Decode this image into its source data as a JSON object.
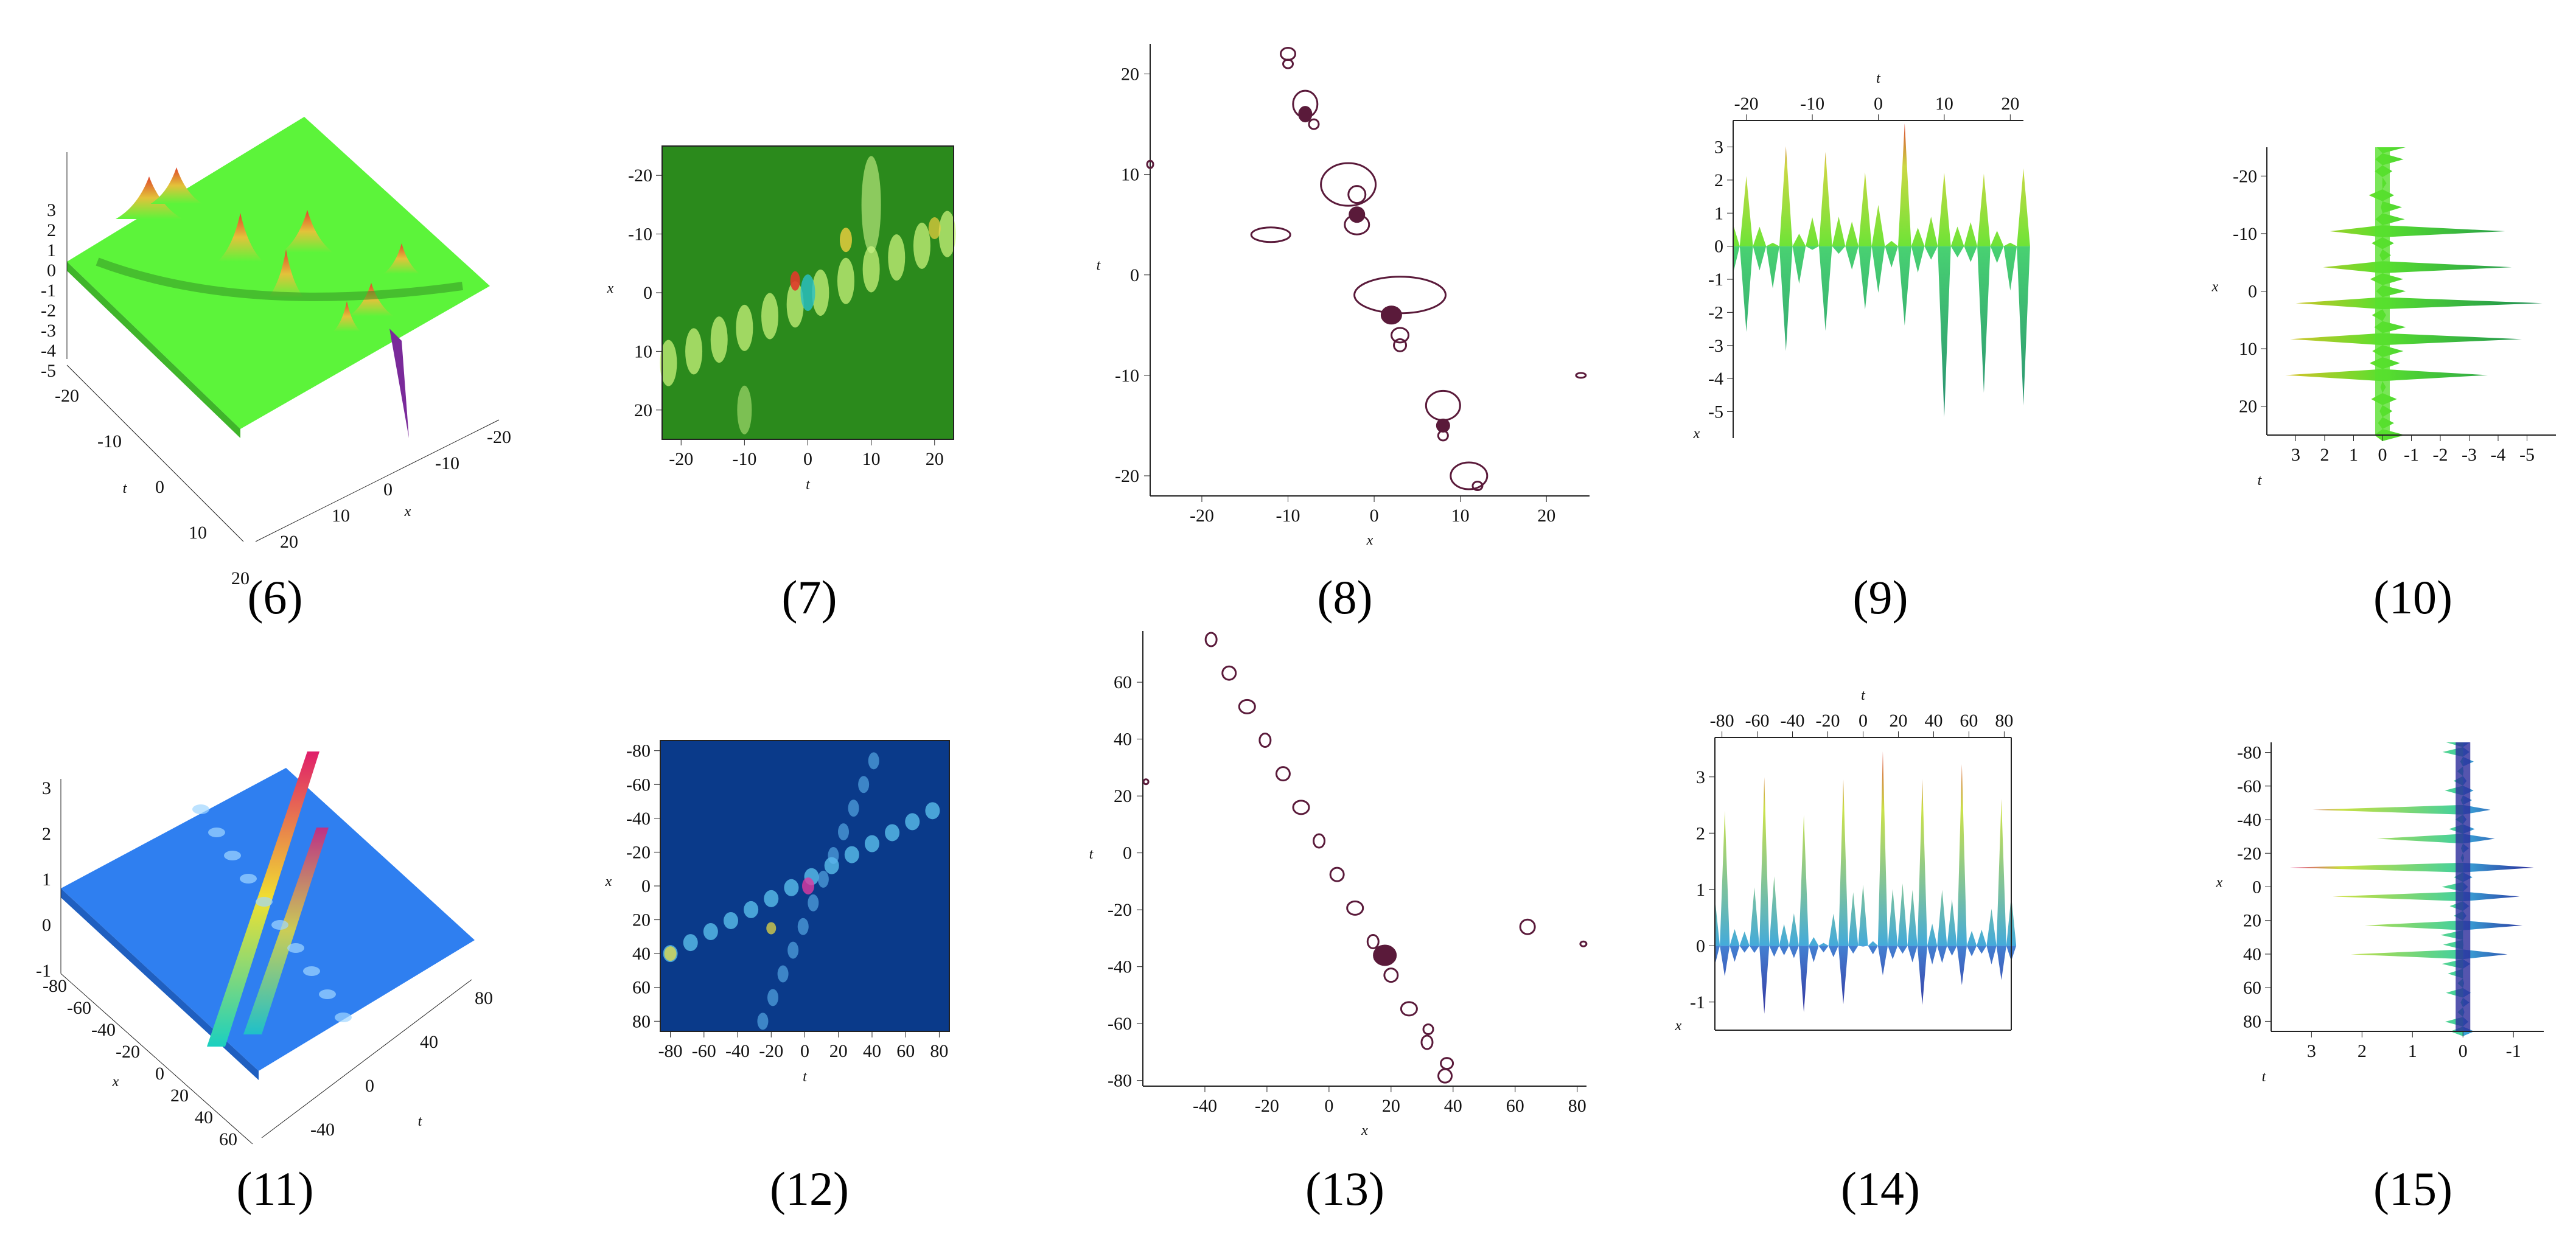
{
  "chart_data": [
    {
      "type": "surface3d",
      "label": "(6)",
      "xlabel": "x",
      "ylabel": "t",
      "ztick_labels": [
        "3",
        "2",
        "1",
        "0",
        "-1",
        "-2",
        "-3",
        "-4",
        "-5"
      ],
      "t_tick_labels": [
        "-20",
        "-10",
        "0",
        "10",
        "20"
      ],
      "x_tick_labels": [
        "-20",
        "-10",
        "0",
        "10",
        "20"
      ],
      "colors": {
        "plane": "#5cf43a",
        "peak": "#e0452a",
        "mid": "#e3c23a"
      }
    },
    {
      "type": "heatmap",
      "label": "(7)",
      "xlabel": "t",
      "ylabel": "x",
      "x_tick_labels": [
        "-20",
        "-10",
        "0",
        "10",
        "20"
      ],
      "y_tick_labels": [
        "-20",
        "-10",
        "0",
        "10",
        "20"
      ],
      "xlim": [
        -23,
        23
      ],
      "ylim": [
        -25,
        25
      ],
      "colors": {
        "background": "#2b8a1c",
        "light": "#b6f07a"
      }
    },
    {
      "type": "contour",
      "label": "(8)",
      "xlabel": "x",
      "ylabel": "t",
      "x_tick_labels": [
        "-20",
        "-10",
        "0",
        "10",
        "20"
      ],
      "y_tick_labels": [
        "20",
        "10",
        "0",
        "-10",
        "-20"
      ],
      "xlim": [
        -26,
        25
      ],
      "ylim": [
        -22,
        23
      ],
      "colors": {
        "line": "#5a1a3a"
      }
    },
    {
      "type": "profile",
      "label": "(9)",
      "xlabel": "x",
      "top_axis_label": "t",
      "top_tick_labels": [
        "-20",
        "-10",
        "0",
        "10",
        "20"
      ],
      "y_tick_labels": [
        "3",
        "2",
        "1",
        "0",
        "-1",
        "-2",
        "-3",
        "-4",
        "-5"
      ],
      "colors": {
        "top": "#66e22c",
        "bottom": "#1d8a6a",
        "peak": "#d83a24"
      }
    },
    {
      "type": "profile",
      "label": "(10)",
      "xlabel": "t",
      "ylabel": "x",
      "bottom_tick_labels": [
        "3",
        "2",
        "1",
        "0",
        "-1",
        "-2",
        "-3",
        "-4",
        "-5"
      ],
      "y_tick_labels": [
        "-20",
        "-10",
        "0",
        "10",
        "20"
      ],
      "colors": {
        "left": "#d7c228",
        "right": "#198a52",
        "green": "#58e02e"
      }
    },
    {
      "type": "surface3d",
      "label": "(11)",
      "xlabel": "x",
      "ylabel": "t",
      "ztick_labels": [
        "3",
        "2",
        "1",
        "0",
        "-1"
      ],
      "x_tick_labels": [
        "-80",
        "-60",
        "-40",
        "-20",
        "0",
        "20",
        "40",
        "60"
      ],
      "t_tick_labels": [
        "80",
        "40",
        "0",
        "-40"
      ],
      "colors": {
        "plane": "#2f7ff0",
        "peak": "#e01e6a"
      }
    },
    {
      "type": "heatmap",
      "label": "(12)",
      "xlabel": "t",
      "ylabel": "x",
      "x_tick_labels": [
        "-80",
        "-60",
        "-40",
        "-20",
        "0",
        "20",
        "40",
        "60",
        "80"
      ],
      "y_tick_labels": [
        "-80",
        "-60",
        "-40",
        "-20",
        "0",
        "20",
        "40",
        "60",
        "80"
      ],
      "xlim": [
        -86,
        86
      ],
      "ylim": [
        -86,
        86
      ],
      "colors": {
        "background": "#0a3a8a",
        "light": "#5fb7f0"
      }
    },
    {
      "type": "contour",
      "label": "(13)",
      "xlabel": "x",
      "ylabel": "t",
      "x_tick_labels": [
        "-40",
        "-20",
        "0",
        "20",
        "40",
        "60",
        "80"
      ],
      "y_tick_labels": [
        "60",
        "40",
        "20",
        "0",
        "-20",
        "-40",
        "-60",
        "-80"
      ],
      "xlim": [
        -60,
        83
      ],
      "ylim": [
        -82,
        78
      ],
      "colors": {
        "line": "#5a1a3a"
      }
    },
    {
      "type": "profile",
      "label": "(14)",
      "xlabel": "x",
      "top_axis_label": "t",
      "top_tick_labels": [
        "-80",
        "-60",
        "-40",
        "-20",
        "0",
        "20",
        "40",
        "60",
        "80"
      ],
      "y_tick_labels": [
        "3",
        "2",
        "1",
        "0",
        "-1"
      ],
      "colors": {
        "top": "#3aa6d8",
        "bottom": "#2a2a9a",
        "peak": "#d83a24"
      }
    },
    {
      "type": "profile",
      "label": "(15)",
      "xlabel": "t",
      "ylabel": "x",
      "bottom_tick_labels": [
        "3",
        "2",
        "1",
        "0",
        "-1"
      ],
      "y_tick_labels": [
        "-80",
        "-60",
        "-40",
        "-20",
        "0",
        "20",
        "40",
        "60",
        "80"
      ],
      "colors": {
        "left": "#3fd0a0",
        "right": "#2a2a9a",
        "peak": "#e0307a"
      }
    }
  ]
}
